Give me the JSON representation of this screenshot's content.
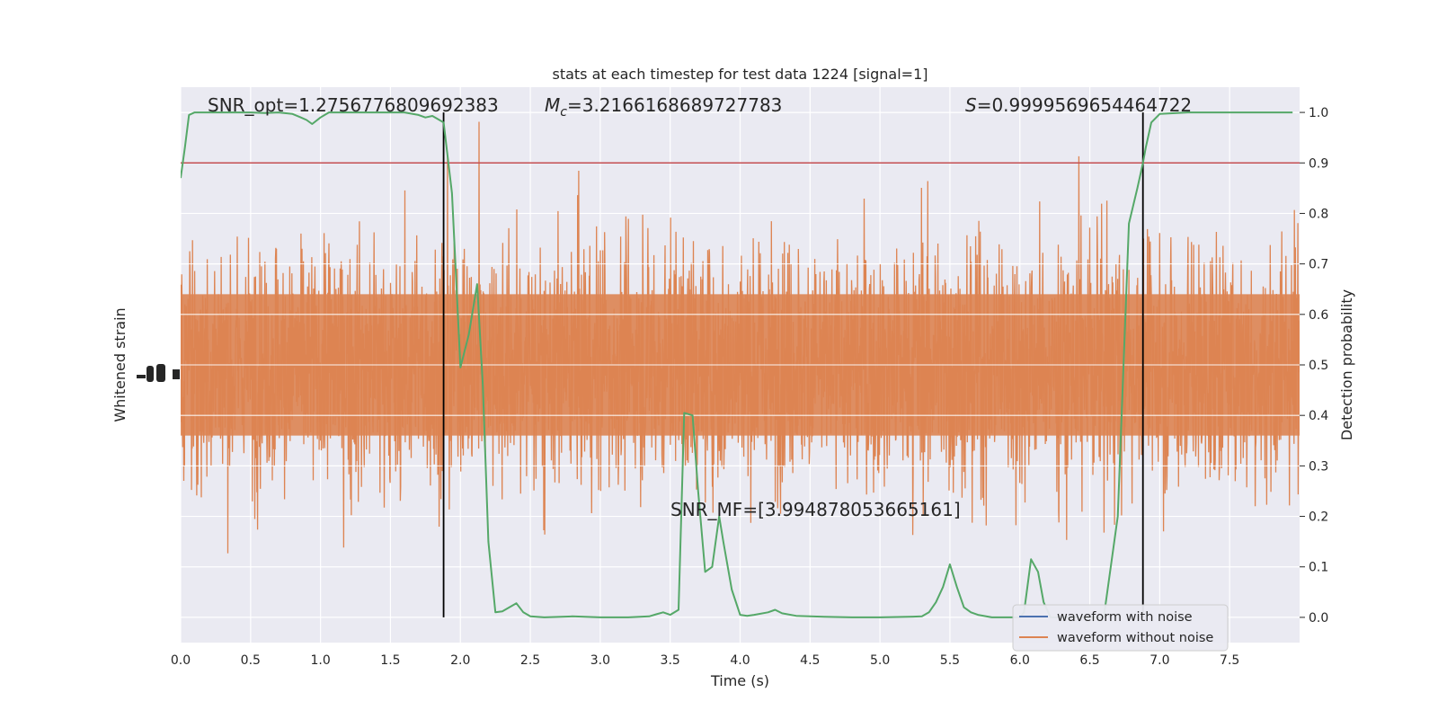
{
  "chart_data": {
    "type": "line",
    "title": "stats at each timestep for test data 1224 [signal=1]",
    "xlabel": "Time (s)",
    "ylabel_left": "Whitened strain",
    "ylabel_right": "Detection probability",
    "xlim": [
      0,
      8
    ],
    "ylim_right": [
      -0.05,
      1.05
    ],
    "x_ticks": [
      "0.0",
      "0.5",
      "1.0",
      "1.5",
      "2.0",
      "2.5",
      "3.0",
      "3.5",
      "4.0",
      "4.5",
      "5.0",
      "5.5",
      "6.0",
      "6.5",
      "7.0",
      "7.5"
    ],
    "y_ticks_right": [
      "0.0",
      "0.1",
      "0.2",
      "0.3",
      "0.4",
      "0.5",
      "0.6",
      "0.7",
      "0.8",
      "0.9",
      "1.0"
    ],
    "grid": true,
    "legend_position": "lower-right",
    "annotations": {
      "snr_opt": "SNR_opt=1.2756776809692383",
      "mc_symbol": "M",
      "mc_sub": "c",
      "mc_value": "=3.2166168689727783",
      "s_symbol": "S",
      "s_value": "=0.9999569654464722",
      "snr_mf": "SNR_MF=[3.994878053665161]"
    },
    "threshold": 0.9,
    "vertical_lines_x": [
      1.88,
      6.88
    ],
    "series": [
      {
        "name": "waveform with noise",
        "color": "#4c72b0"
      },
      {
        "name": "waveform without noise",
        "color": "#dd8452"
      }
    ],
    "probability": {
      "color": "#55a868",
      "x": [
        0.0,
        0.03,
        0.06,
        0.1,
        0.15,
        0.2,
        0.3,
        0.4,
        0.5,
        0.6,
        0.7,
        0.8,
        0.86,
        0.9,
        0.94,
        1.0,
        1.06,
        1.1,
        1.2,
        1.3,
        1.4,
        1.5,
        1.6,
        1.7,
        1.75,
        1.8,
        1.85,
        1.88,
        1.94,
        2.0,
        2.06,
        2.12,
        2.16,
        2.2,
        2.25,
        2.3,
        2.35,
        2.4,
        2.45,
        2.5,
        2.6,
        2.8,
        3.0,
        3.2,
        3.35,
        3.4,
        3.45,
        3.5,
        3.56,
        3.6,
        3.66,
        3.7,
        3.75,
        3.8,
        3.85,
        3.88,
        3.94,
        4.0,
        4.05,
        4.1,
        4.2,
        4.25,
        4.3,
        4.4,
        4.5,
        4.6,
        4.8,
        5.0,
        5.2,
        5.3,
        5.35,
        5.4,
        5.45,
        5.5,
        5.55,
        5.6,
        5.65,
        5.7,
        5.8,
        6.0,
        6.03,
        6.08,
        6.13,
        6.17,
        6.22,
        6.3,
        6.5,
        6.6,
        6.7,
        6.78,
        6.84,
        6.88,
        6.9,
        6.94,
        7.0,
        7.2,
        7.4,
        7.6,
        7.8,
        7.95
      ],
      "y": [
        0.87,
        0.93,
        0.995,
        1.0,
        1.0,
        1.0,
        1.0,
        1.0,
        1.0,
        0.999,
        1.0,
        0.997,
        0.99,
        0.985,
        0.977,
        0.99,
        1.0,
        1.0,
        1.0,
        1.0,
        1.0,
        1.0,
        1.0,
        0.995,
        0.99,
        0.993,
        0.985,
        0.98,
        0.84,
        0.495,
        0.56,
        0.66,
        0.46,
        0.15,
        0.01,
        0.012,
        0.02,
        0.028,
        0.01,
        0.002,
        0.0,
        0.002,
        0.0,
        0.0,
        0.002,
        0.006,
        0.01,
        0.005,
        0.015,
        0.405,
        0.4,
        0.25,
        0.09,
        0.1,
        0.2,
        0.15,
        0.055,
        0.005,
        0.003,
        0.005,
        0.01,
        0.015,
        0.008,
        0.003,
        0.002,
        0.001,
        0.0,
        0.0,
        0.001,
        0.002,
        0.01,
        0.03,
        0.06,
        0.105,
        0.06,
        0.02,
        0.01,
        0.005,
        0.0,
        0.0,
        0.01,
        0.115,
        0.09,
        0.03,
        0.0,
        0.0,
        0.0,
        0.0,
        0.2,
        0.78,
        0.85,
        0.9,
        0.93,
        0.98,
        0.997,
        1.0,
        1.0,
        1.0,
        1.0,
        1.0
      ]
    }
  }
}
